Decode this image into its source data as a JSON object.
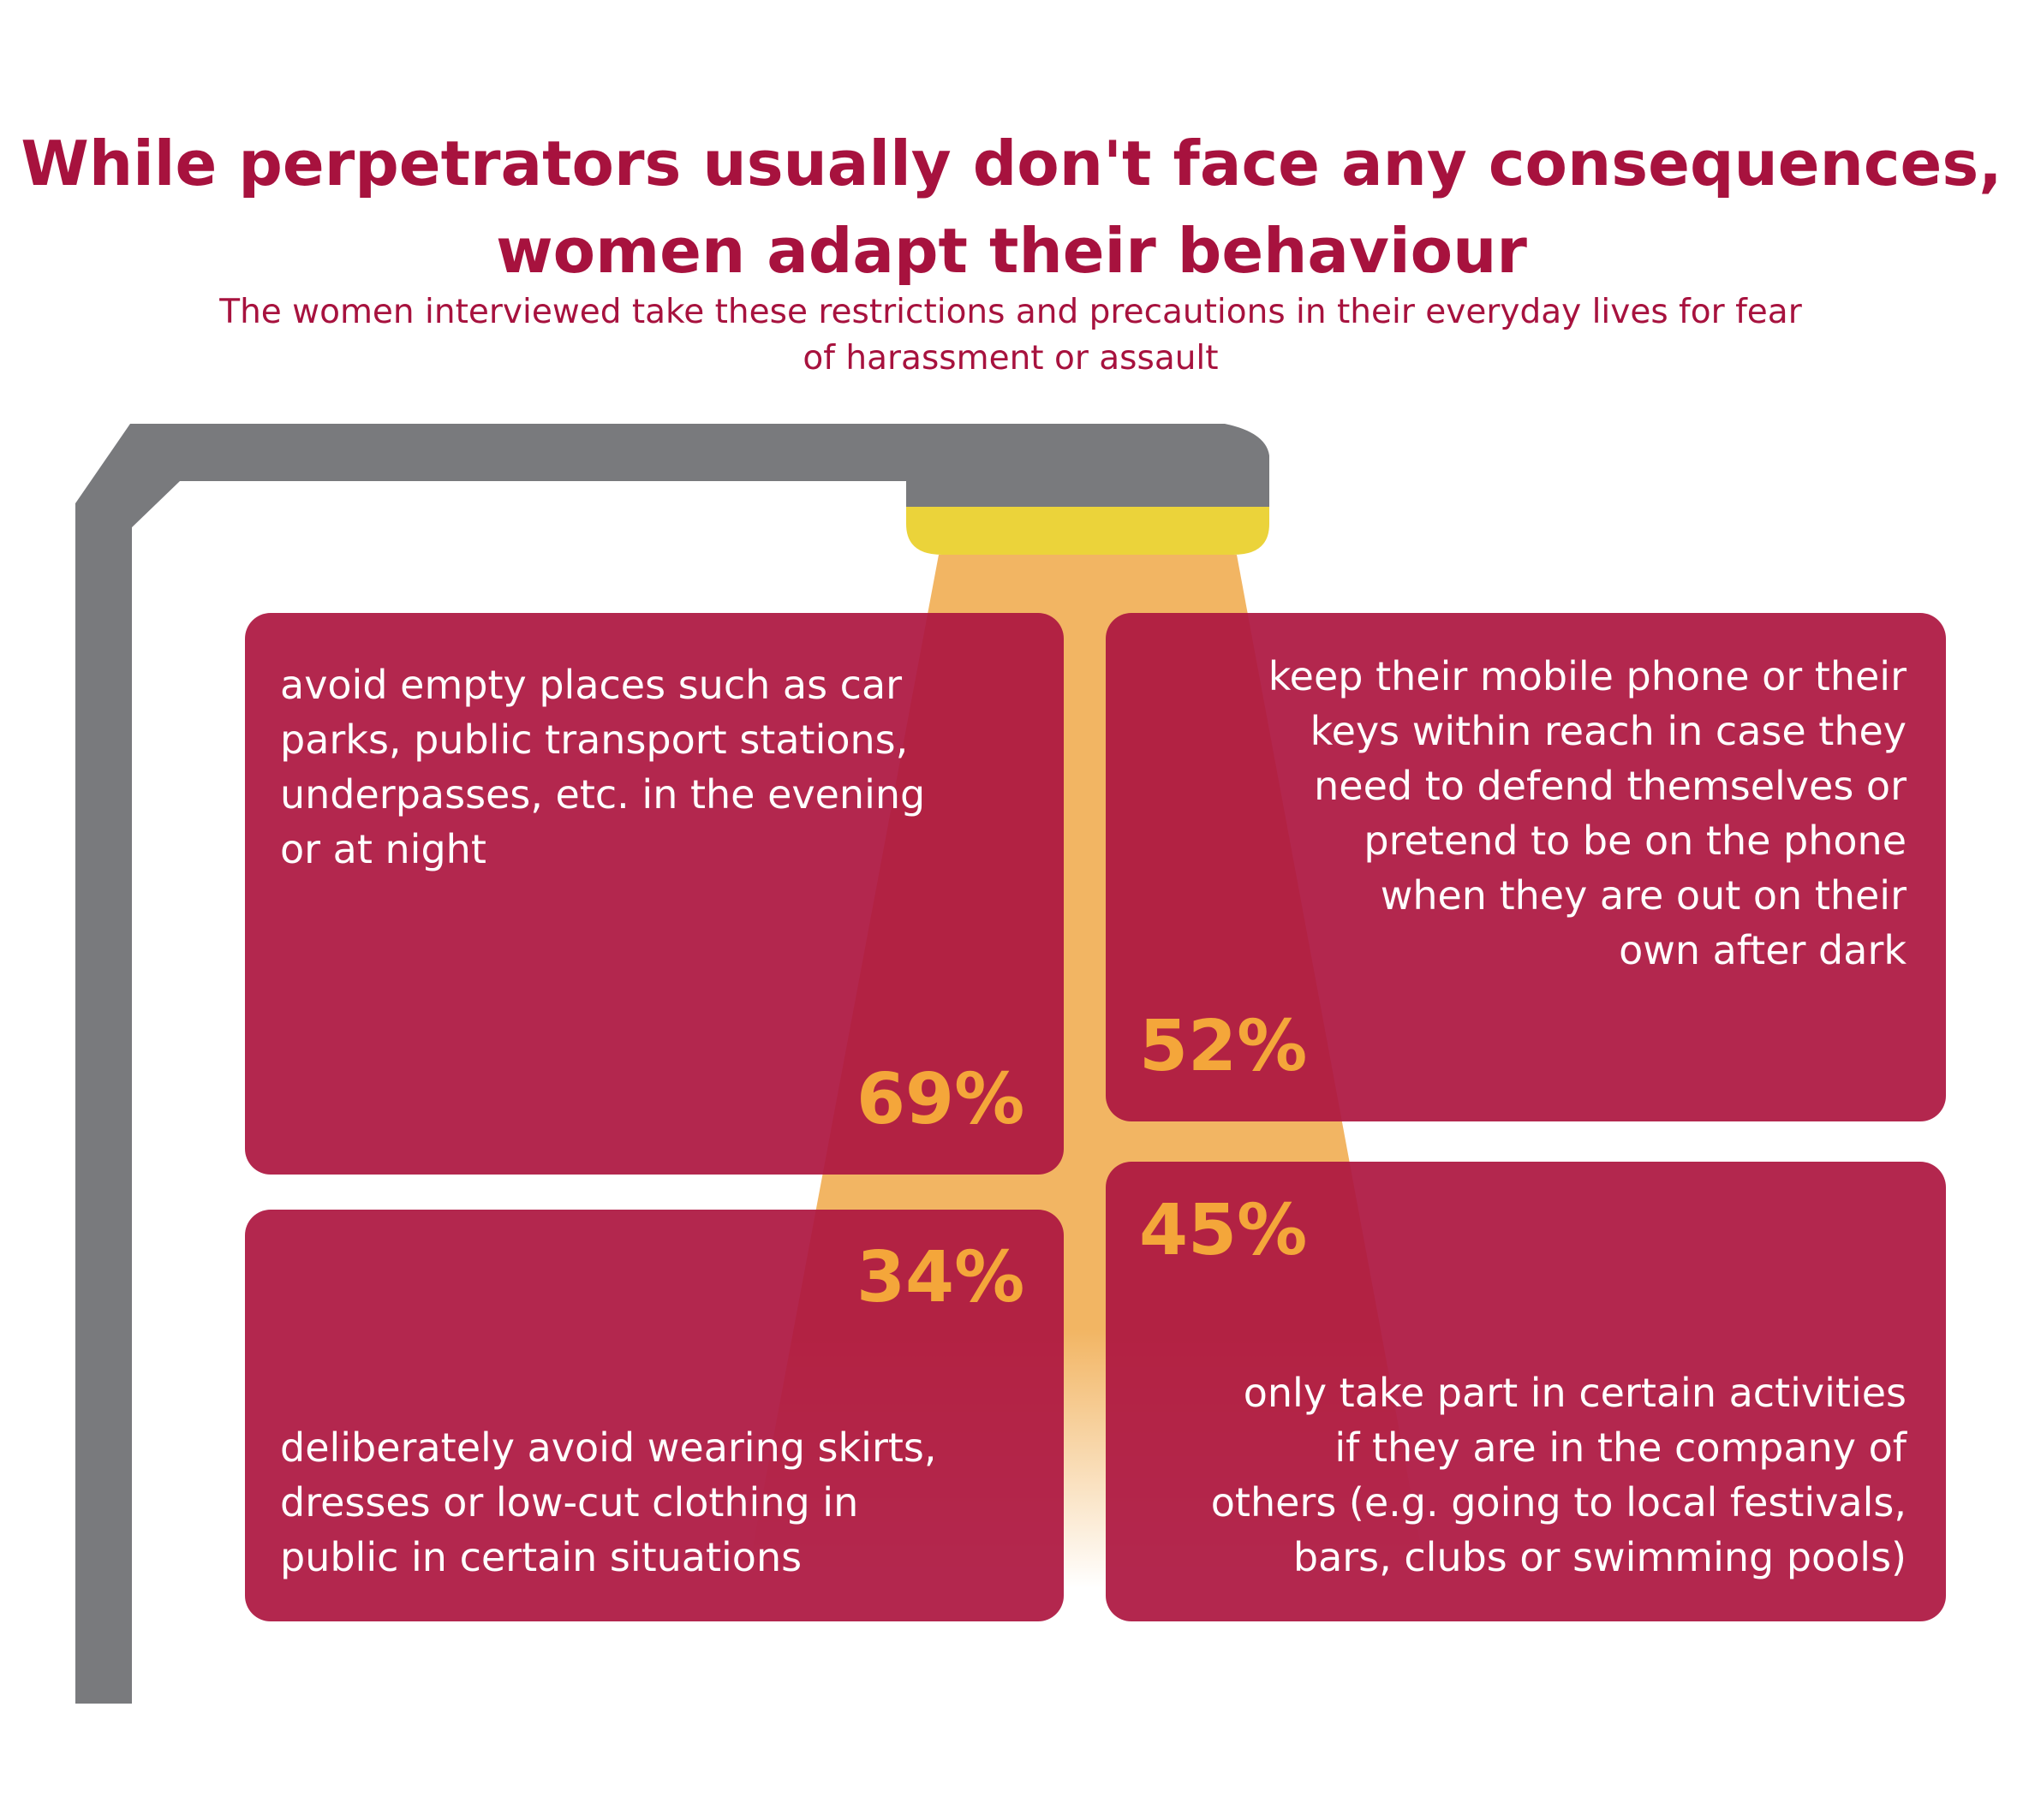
{
  "header": {
    "title_line1": "While perpetrators usually don't face any consequences,",
    "title_line2": "women adapt their behaviour",
    "subtitle_line1": "The women interviewed take these restrictions and precautions in their everyday lives for fear",
    "subtitle_line2": "of harassment or assault"
  },
  "colors": {
    "accent": "#a7123e",
    "card": "#ad1741",
    "lamp_post": "#797a7d",
    "lamp_bulb": "#ebd33a",
    "light_beam": "#f2b563",
    "percent": "#f4a63a"
  },
  "cards": [
    {
      "percent": "69%",
      "lines": [
        "avoid empty places such as car",
        "parks, public transport stations,",
        "underpasses, etc. in the evening",
        "or at night"
      ]
    },
    {
      "percent": "52%",
      "lines": [
        "keep their mobile phone or their",
        "keys within reach in case they",
        "need to defend themselves or",
        "pretend to be on the phone",
        "when they are out on their",
        "own after dark"
      ]
    },
    {
      "percent": "34%",
      "lines": [
        "deliberately avoid wearing skirts,",
        "dresses or low-cut clothing in",
        "public in certain situations"
      ]
    },
    {
      "percent": "45%",
      "lines": [
        "only take part in certain activities",
        "if they are in the company of",
        "others (e.g. going to local festivals,",
        "bars, clubs or swimming pools)"
      ]
    }
  ]
}
